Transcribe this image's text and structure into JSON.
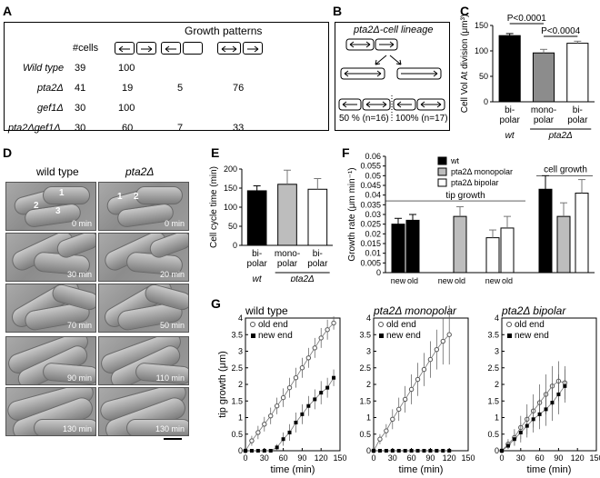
{
  "panels": {
    "A": "A",
    "B": "B",
    "C": "C",
    "D": "D",
    "E": "E",
    "F": "F",
    "G": "G"
  },
  "panelA": {
    "title": "Growth patterns",
    "cells_header": "#cells",
    "rows": [
      {
        "strain": "Wild type",
        "n": "39",
        "c1": "100",
        "c2": "",
        "c3": ""
      },
      {
        "strain": "pta2Δ",
        "n": "41",
        "c1": "19",
        "c2": "5",
        "c3": "76"
      },
      {
        "strain": "gef1Δ",
        "n": "30",
        "c1": "100",
        "c2": "",
        "c3": ""
      },
      {
        "strain": "pta2Δgef1Δ",
        "n": "30",
        "c1": "60",
        "c2": "7",
        "c3": "33"
      }
    ]
  },
  "panelB": {
    "title": "pta2Δ-cell lineage",
    "left_pct": "50 % (n=16)",
    "right_pct": "100% (n=17)"
  },
  "panelC": {
    "chart_data": {
      "type": "bar",
      "ylabel": "Cell Vol At division (μm³)",
      "categories": [
        "bi-polar",
        "mono-polar",
        "bi-polar"
      ],
      "category_lines": [
        [
          "bi-",
          "polar"
        ],
        [
          "mono-",
          "polar"
        ],
        [
          "bi-",
          "polar"
        ]
      ],
      "groups": [
        "wt",
        "pta2Δ"
      ],
      "values": [
        130,
        96,
        115
      ],
      "errors": [
        4,
        7,
        4
      ],
      "colors": [
        "#000000",
        "#8c8c8c",
        "#ffffff"
      ],
      "ylim": [
        0,
        150
      ],
      "yticks": [
        0,
        50,
        100,
        150
      ],
      "annotations": [
        "P<0.0001",
        "P<0.0004"
      ]
    }
  },
  "panelD": {
    "col1": "wild type",
    "col2": "pta2Δ",
    "times_left": [
      "0 min",
      "30 min",
      "70 min",
      "90 min",
      "130 min"
    ],
    "times_right": [
      "0 min",
      "20 min",
      "50 min",
      "110 min",
      "130 min"
    ],
    "cell_numbers": [
      "1",
      "2",
      "3",
      "1",
      "2"
    ]
  },
  "panelE": {
    "chart_data": {
      "type": "bar",
      "ylabel": "Cell cycle time (min)",
      "categories": [
        "bi-polar",
        "mono-polar",
        "bi-polar"
      ],
      "category_lines": [
        [
          "bi-",
          "polar"
        ],
        [
          "mono-",
          "polar"
        ],
        [
          "bi-",
          "polar"
        ]
      ],
      "groups": [
        "wt",
        "pta2Δ"
      ],
      "values": [
        143,
        160,
        147
      ],
      "errors": [
        13,
        37,
        28
      ],
      "colors": [
        "#000000",
        "#bdbdbd",
        "#ffffff"
      ],
      "ylim": [
        0,
        200
      ],
      "yticks": [
        0,
        50,
        100,
        150,
        200
      ]
    }
  },
  "panelF": {
    "chart_data": {
      "type": "bar",
      "ylabel": "Growth rate (μm min⁻¹)",
      "ylim": [
        0,
        0.06
      ],
      "yticks": [
        0,
        0.005,
        0.01,
        0.015,
        0.02,
        0.025,
        0.03,
        0.035,
        0.04,
        0.045,
        0.05,
        0.055,
        0.06
      ],
      "ytick_labels": [
        "0",
        "0.005",
        "0.01",
        "0.015",
        "0.02",
        "0.025",
        "0.03",
        "0.035",
        "0.04",
        "0.045",
        "0.05",
        "0.055",
        "0.06"
      ],
      "legend": [
        "wt",
        "pta2Δ monopolar",
        "pta2Δ bipolar"
      ],
      "legend_colors": [
        "#000000",
        "#bdbdbd",
        "#ffffff"
      ],
      "tip_growth_label": "tip growth",
      "cell_growth_label": "cell growth",
      "bars": [
        {
          "group": "wt",
          "end": "new",
          "value": 0.025,
          "error": 0.003,
          "color": "#000000"
        },
        {
          "group": "wt",
          "end": "old",
          "value": 0.027,
          "error": 0.003,
          "color": "#000000"
        },
        {
          "group": "pta2Δ monopolar",
          "end": "new",
          "value": null,
          "error": null,
          "color": "#bdbdbd"
        },
        {
          "group": "pta2Δ monopolar",
          "end": "old",
          "value": 0.029,
          "error": 0.005,
          "color": "#bdbdbd"
        },
        {
          "group": "pta2Δ bipolar",
          "end": "new",
          "value": 0.018,
          "error": 0.004,
          "color": "#ffffff"
        },
        {
          "group": "pta2Δ bipolar",
          "end": "old",
          "value": 0.023,
          "error": 0.006,
          "color": "#ffffff"
        },
        {
          "group": "cell growth wt",
          "end": "",
          "value": 0.043,
          "error": 0.007,
          "color": "#000000"
        },
        {
          "group": "cell growth monopolar",
          "end": "",
          "value": 0.029,
          "error": 0.007,
          "color": "#bdbdbd"
        },
        {
          "group": "cell growth bipolar",
          "end": "",
          "value": 0.041,
          "error": 0.007,
          "color": "#ffffff"
        }
      ],
      "xlabels": [
        "new",
        "old",
        "new",
        "old",
        "new",
        "old"
      ]
    }
  },
  "panelG": {
    "chart_data": [
      {
        "type": "line",
        "title": "wild type",
        "xlabel": "time (min)",
        "ylabel": "tip growth (μm)",
        "xlim": [
          0,
          150
        ],
        "ylim": [
          0,
          4
        ],
        "xticks": [
          0,
          30,
          60,
          90,
          120,
          150
        ],
        "yticks": [
          0,
          0.5,
          1,
          1.5,
          2,
          2.5,
          3,
          3.5,
          4
        ],
        "series": [
          {
            "name": "old end",
            "marker": "open",
            "x": [
              0,
              10,
              20,
              30,
              40,
              50,
              60,
              70,
              80,
              90,
              100,
              110,
              120,
              130,
              140
            ],
            "y": [
              0,
              0.3,
              0.55,
              0.8,
              1.05,
              1.35,
              1.6,
              1.9,
              2.2,
              2.5,
              2.8,
              3.1,
              3.4,
              3.65,
              3.85
            ],
            "err": [
              0,
              0.15,
              0.2,
              0.22,
              0.25,
              0.25,
              0.28,
              0.3,
              0.3,
              0.3,
              0.3,
              0.3,
              0.3,
              0.3,
              0.2
            ]
          },
          {
            "name": "new end",
            "marker": "filled",
            "x": [
              0,
              10,
              20,
              30,
              40,
              50,
              60,
              70,
              80,
              90,
              100,
              110,
              120,
              130,
              140
            ],
            "y": [
              0,
              0,
              0,
              0,
              0,
              0.1,
              0.35,
              0.55,
              0.85,
              1.1,
              1.35,
              1.55,
              1.75,
              1.9,
              2.2
            ],
            "err": [
              0,
              0,
              0,
              0,
              0,
              0.1,
              0.2,
              0.25,
              0.3,
              0.3,
              0.3,
              0.3,
              0.35,
              0.3,
              0.25
            ]
          }
        ]
      },
      {
        "type": "line",
        "title": "pta2Δ monopolar",
        "xlabel": "time (min)",
        "xlim": [
          0,
          150
        ],
        "ylim": [
          0,
          4
        ],
        "xticks": [
          0,
          30,
          60,
          90,
          120,
          150
        ],
        "yticks": [
          0,
          0.5,
          1,
          1.5,
          2,
          2.5,
          3,
          3.5,
          4
        ],
        "series": [
          {
            "name": "old end",
            "marker": "open",
            "x": [
              0,
              10,
              20,
              30,
              40,
              50,
              60,
              70,
              80,
              90,
              100,
              110,
              120
            ],
            "y": [
              0,
              0.35,
              0.6,
              0.95,
              1.25,
              1.55,
              1.85,
              2.15,
              2.45,
              2.75,
              3.05,
              3.3,
              3.5
            ],
            "err": [
              0,
              0.15,
              0.2,
              0.3,
              0.35,
              0.4,
              0.45,
              0.5,
              0.5,
              0.55,
              0.6,
              0.7,
              0.9
            ]
          },
          {
            "name": "new end",
            "marker": "filled",
            "x": [
              0,
              10,
              20,
              30,
              40,
              50,
              60,
              70,
              80,
              90,
              100,
              110,
              120
            ],
            "y": [
              0,
              0,
              0,
              0,
              0,
              0,
              0,
              0,
              0,
              0,
              0,
              0,
              0
            ],
            "err": [
              0,
              0,
              0,
              0,
              0,
              0,
              0,
              0,
              0,
              0,
              0,
              0,
              0
            ]
          }
        ]
      },
      {
        "type": "line",
        "title": "pta2Δ bipolar",
        "xlabel": "time (min)",
        "xlim": [
          0,
          150
        ],
        "ylim": [
          0,
          4
        ],
        "xticks": [
          0,
          30,
          60,
          90,
          120,
          150
        ],
        "yticks": [
          0,
          0.5,
          1,
          1.5,
          2,
          2.5,
          3,
          3.5,
          4
        ],
        "series": [
          {
            "name": "old end",
            "marker": "open",
            "x": [
              0,
              10,
              20,
              30,
              40,
              50,
              60,
              70,
              80,
              90,
              100
            ],
            "y": [
              0,
              0.2,
              0.4,
              0.7,
              0.95,
              1.2,
              1.45,
              1.7,
              1.95,
              2.1,
              2.05
            ],
            "err": [
              0,
              0.15,
              0.25,
              0.35,
              0.45,
              0.5,
              0.55,
              0.6,
              0.6,
              0.6,
              0.5
            ]
          },
          {
            "name": "new end",
            "marker": "filled",
            "x": [
              0,
              10,
              20,
              30,
              40,
              50,
              60,
              70,
              80,
              90,
              100
            ],
            "y": [
              0,
              0.15,
              0.35,
              0.55,
              0.75,
              0.95,
              1.1,
              1.25,
              1.45,
              1.7,
              1.95
            ],
            "err": [
              0,
              0.1,
              0.2,
              0.3,
              0.35,
              0.4,
              0.45,
              0.5,
              0.55,
              0.6,
              0.5
            ]
          }
        ]
      }
    ]
  }
}
